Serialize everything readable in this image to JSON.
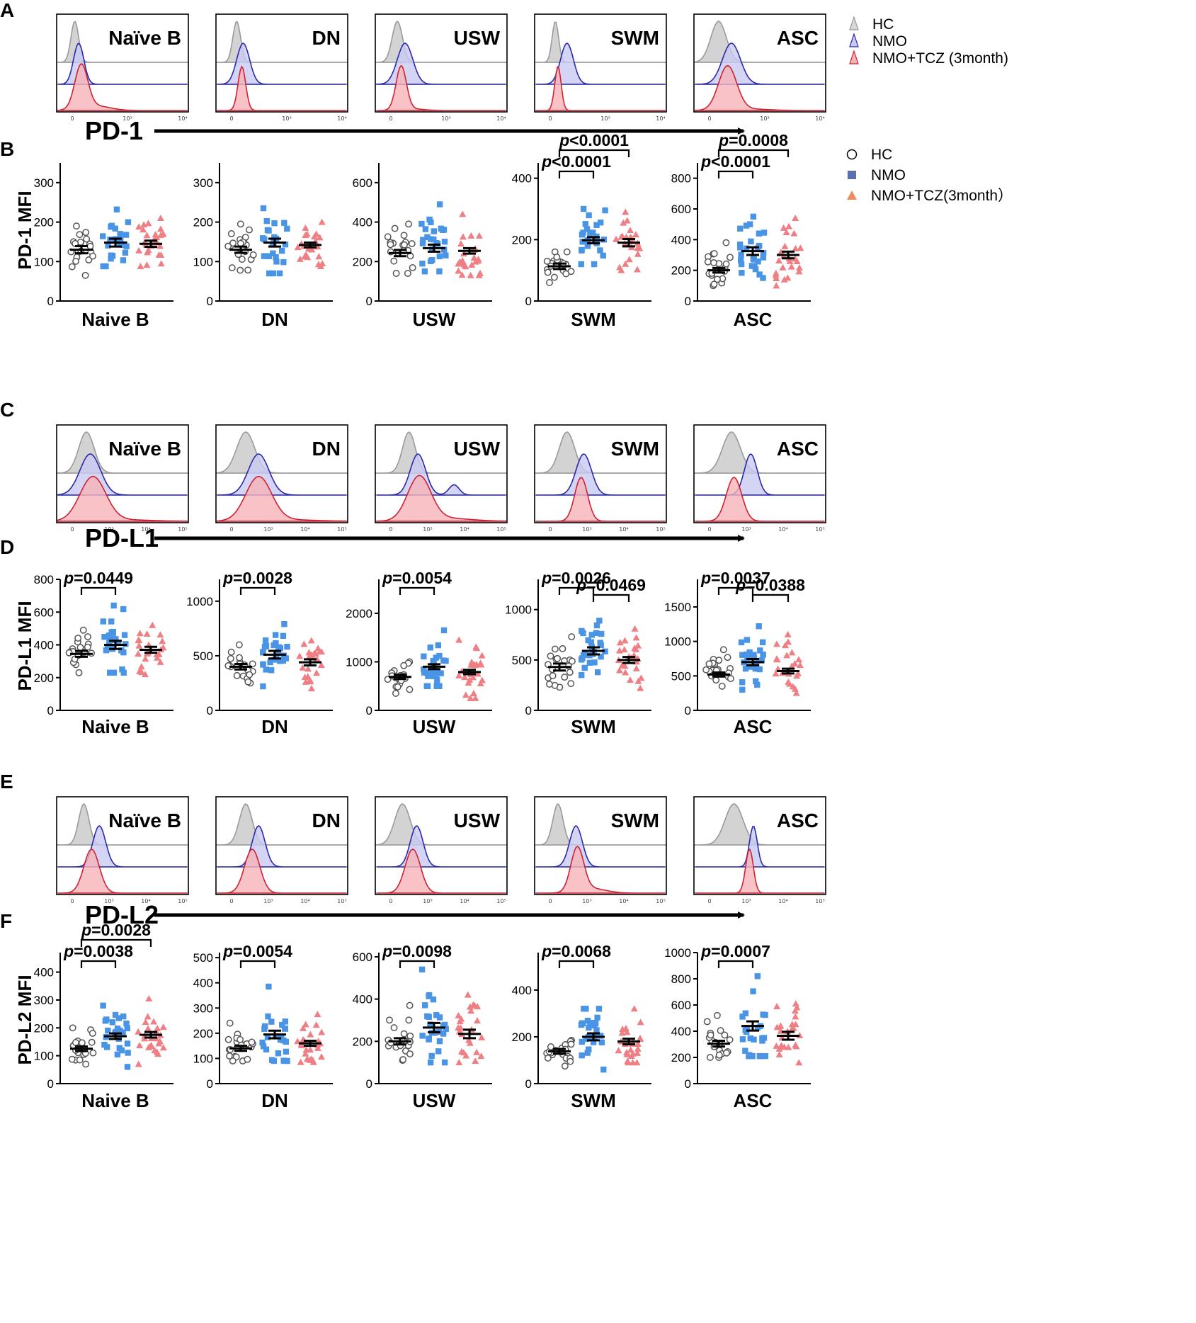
{
  "colors": {
    "hc": "#555555",
    "nmo": "#4a94e6",
    "tcz": "#ee7f84",
    "hc_fill": "#c8c8c8",
    "nmo_fill": "#c9c9f2",
    "nmo_line": "#2a2aa8",
    "tcz_fill": "#f6b3b8",
    "tcz_line": "#cf2232"
  },
  "legend_top": {
    "entries": [
      "HC",
      "NMO",
      "NMO+TCZ (3month)"
    ]
  },
  "legend_scatter": {
    "entries": [
      "HC",
      "NMO",
      "NMO+TCZ(3month）"
    ]
  },
  "hist_rows": [
    {
      "letter": "A",
      "marker": "PD-1",
      "panels": [
        {
          "title": "Naïve B",
          "hc": [
            0.13,
            0.03,
            0.0
          ],
          "nmo": [
            0.16,
            0.04,
            0.0
          ],
          "tcz": [
            0.18,
            0.05,
            0.0
          ],
          "tcz_tail": 0.3
        },
        {
          "title": "DN",
          "hc": [
            0.15,
            0.03,
            0.0
          ],
          "nmo": [
            0.2,
            0.05,
            0.0
          ],
          "tcz": [
            0.19,
            0.03,
            0.0
          ],
          "tcz_tail": 0.0
        },
        {
          "title": "USW",
          "hc": [
            0.16,
            0.04,
            0.0
          ],
          "nmo": [
            0.22,
            0.06,
            0.0
          ],
          "tcz": [
            0.19,
            0.04,
            0.0
          ],
          "tcz_tail": 0.1
        },
        {
          "title": "SWM",
          "hc": [
            0.15,
            0.025,
            0.0
          ],
          "nmo": [
            0.24,
            0.05,
            0.0
          ],
          "tcz": [
            0.17,
            0.025,
            0.0
          ],
          "tcz_tail": 0.0
        },
        {
          "title": "ASC",
          "hc": [
            0.18,
            0.06,
            0.0
          ],
          "nmo": [
            0.28,
            0.07,
            0.0
          ],
          "tcz": [
            0.25,
            0.07,
            0.0
          ],
          "tcz_tail": 0.1
        }
      ],
      "ticks": [
        "0",
        "10³",
        "10⁴"
      ]
    },
    {
      "letter": "C",
      "marker": "PD-L1",
      "panels": [
        {
          "title": "Naïve B",
          "hc": [
            0.22,
            0.06,
            0.0
          ],
          "nmo": [
            0.25,
            0.08,
            0.0
          ],
          "tcz": [
            0.27,
            0.1,
            0.0
          ],
          "tcz_tail": 0.1
        },
        {
          "title": "DN",
          "hc": [
            0.22,
            0.07,
            0.0
          ],
          "nmo": [
            0.32,
            0.08,
            0.0
          ],
          "tcz": [
            0.32,
            0.1,
            0.0
          ],
          "tcz_tail": 0.1
        },
        {
          "title": "USW",
          "hc": [
            0.25,
            0.05,
            0.0
          ],
          "nmo": [
            0.32,
            0.06,
            0.6
          ],
          "tcz": [
            0.33,
            0.09,
            0.0
          ],
          "tcz_tail": 0.2
        },
        {
          "title": "SWM",
          "hc": [
            0.24,
            0.06,
            0.0
          ],
          "nmo": [
            0.37,
            0.06,
            0.0
          ],
          "tcz": [
            0.35,
            0.05,
            0.0
          ],
          "tcz_tail": 0.0
        },
        {
          "title": "ASC",
          "hc": [
            0.28,
            0.07,
            0.0
          ],
          "nmo": [
            0.43,
            0.05,
            0.0
          ],
          "tcz": [
            0.3,
            0.06,
            0.0
          ],
          "tcz_tail": 0.0
        }
      ],
      "ticks": [
        "0",
        "10³",
        "10⁴",
        "10⁵"
      ]
    },
    {
      "letter": "E",
      "marker": "PD-L2",
      "panels": [
        {
          "title": "Naïve B",
          "hc": [
            0.2,
            0.04,
            0.0
          ],
          "nmo": [
            0.32,
            0.05,
            0.0
          ],
          "tcz": [
            0.26,
            0.06,
            0.0
          ],
          "tcz_tail": 0.0
        },
        {
          "title": "DN",
          "hc": [
            0.22,
            0.05,
            0.0
          ],
          "nmo": [
            0.32,
            0.05,
            0.0
          ],
          "tcz": [
            0.27,
            0.06,
            0.0
          ],
          "tcz_tail": 0.0
        },
        {
          "title": "USW",
          "hc": [
            0.2,
            0.06,
            0.0
          ],
          "nmo": [
            0.31,
            0.05,
            0.0
          ],
          "tcz": [
            0.28,
            0.06,
            0.0
          ],
          "tcz_tail": 0.0
        },
        {
          "title": "SWM",
          "hc": [
            0.17,
            0.04,
            0.0
          ],
          "nmo": [
            0.31,
            0.05,
            0.0
          ],
          "tcz": [
            0.32,
            0.05,
            0.0
          ],
          "tcz_tail": 0.3
        },
        {
          "title": "ASC",
          "hc": [
            0.3,
            0.07,
            0.0
          ],
          "nmo": [
            0.45,
            0.03,
            0.0
          ],
          "tcz": [
            0.42,
            0.03,
            0.0
          ],
          "tcz_tail": 0.0
        }
      ],
      "ticks": [
        "0",
        "10³",
        "10⁴",
        "10⁵"
      ]
    }
  ],
  "chart_data": [
    {
      "letter": "B",
      "type": "scatter",
      "ylabel": "PD-1 MFI",
      "panels": [
        {
          "category": "Naive B",
          "ylim": [
            0,
            350
          ],
          "yticks": [
            0,
            100,
            200,
            300
          ],
          "means": [
            130,
            148,
            145
          ],
          "sems": [
            9,
            10,
            8
          ],
          "ranges": [
            [
              65,
              190
            ],
            [
              88,
              232
            ],
            [
              88,
              210
            ]
          ],
          "counts": [
            20,
            26,
            25
          ],
          "brackets": []
        },
        {
          "category": "DN",
          "ylim": [
            0,
            350
          ],
          "yticks": [
            0,
            100,
            200,
            300
          ],
          "means": [
            130,
            148,
            142
          ],
          "sems": [
            8,
            10,
            6
          ],
          "ranges": [
            [
              78,
              195
            ],
            [
              70,
              235
            ],
            [
              88,
              200
            ]
          ],
          "counts": [
            20,
            26,
            25
          ],
          "brackets": []
        },
        {
          "category": "USW",
          "ylim": [
            0,
            700
          ],
          "yticks": [
            0,
            200,
            400,
            600
          ],
          "means": [
            243,
            268,
            254
          ],
          "sems": [
            16,
            18,
            14
          ],
          "ranges": [
            [
              140,
              390
            ],
            [
              150,
              490
            ],
            [
              130,
              440
            ]
          ],
          "counts": [
            20,
            26,
            25
          ],
          "brackets": []
        },
        {
          "category": "SWM",
          "ylim": [
            0,
            450
          ],
          "yticks": [
            0,
            200,
            400
          ],
          "means": [
            113,
            198,
            190
          ],
          "sems": [
            9,
            10,
            12
          ],
          "ranges": [
            [
              60,
              160
            ],
            [
              120,
              300
            ],
            [
              100,
              290
            ]
          ],
          "counts": [
            20,
            26,
            25
          ],
          "brackets": [
            {
              "from": 0,
              "to": 1,
              "text": "p<0.0001"
            },
            {
              "from": 0,
              "to": 2,
              "text": "p<0.0001"
            }
          ]
        },
        {
          "category": "ASC",
          "ylim": [
            0,
            900
          ],
          "yticks": [
            0,
            200,
            400,
            600,
            800
          ],
          "means": [
            200,
            325,
            300
          ],
          "sems": [
            15,
            25,
            22
          ],
          "ranges": [
            [
              100,
              380
            ],
            [
              150,
              550
            ],
            [
              100,
              540
            ]
          ],
          "counts": [
            20,
            26,
            25
          ],
          "brackets": [
            {
              "from": 0,
              "to": 1,
              "text": "p<0.0001"
            },
            {
              "from": 0,
              "to": 2,
              "text": "p=0.0008"
            }
          ]
        }
      ]
    },
    {
      "letter": "D",
      "type": "scatter",
      "ylabel": "PD-L1 MFI",
      "panels": [
        {
          "category": "Naive B",
          "ylim": [
            0,
            800
          ],
          "yticks": [
            0,
            200,
            400,
            600,
            800
          ],
          "means": [
            345,
            400,
            370
          ],
          "sems": [
            18,
            25,
            18
          ],
          "ranges": [
            [
              230,
              490
            ],
            [
              230,
              640
            ],
            [
              220,
              520
            ]
          ],
          "counts": [
            20,
            26,
            25
          ],
          "brackets": [
            {
              "from": 0,
              "to": 1,
              "text": "p=0.0449"
            }
          ]
        },
        {
          "category": "DN",
          "ylim": [
            0,
            1200
          ],
          "yticks": [
            0,
            500,
            1000
          ],
          "means": [
            400,
            510,
            440
          ],
          "sems": [
            25,
            35,
            28
          ],
          "ranges": [
            [
              250,
              600
            ],
            [
              220,
              790
            ],
            [
              200,
              640
            ]
          ],
          "counts": [
            20,
            26,
            25
          ],
          "brackets": [
            {
              "from": 0,
              "to": 1,
              "text": "p=0.0028"
            }
          ]
        },
        {
          "category": "USW",
          "ylim": [
            0,
            2700
          ],
          "yticks": [
            0,
            1000,
            2000
          ],
          "means": [
            690,
            900,
            790
          ],
          "sems": [
            45,
            50,
            45
          ],
          "ranges": [
            [
              350,
              1000
            ],
            [
              500,
              1650
            ],
            [
              250,
              1450
            ]
          ],
          "counts": [
            20,
            26,
            25
          ],
          "brackets": [
            {
              "from": 0,
              "to": 1,
              "text": "p=0.0054"
            }
          ]
        },
        {
          "category": "SWM",
          "ylim": [
            0,
            1300
          ],
          "yticks": [
            0,
            500,
            1000
          ],
          "means": [
            430,
            590,
            500
          ],
          "sems": [
            35,
            35,
            30
          ],
          "ranges": [
            [
              230,
              730
            ],
            [
              350,
              890
            ],
            [
              220,
              810
            ]
          ],
          "counts": [
            20,
            26,
            25
          ],
          "brackets": [
            {
              "from": 0,
              "to": 1,
              "text": "p=0.0026"
            },
            {
              "from": 1,
              "to": 2,
              "text": "p=0.0469"
            }
          ]
        },
        {
          "category": "ASC",
          "ylim": [
            0,
            1900
          ],
          "yticks": [
            0,
            500,
            1000,
            1500
          ],
          "means": [
            520,
            700,
            570
          ],
          "sems": [
            30,
            45,
            35
          ],
          "ranges": [
            [
              350,
              880
            ],
            [
              300,
              1220
            ],
            [
              250,
              1100
            ]
          ],
          "counts": [
            20,
            26,
            25
          ],
          "brackets": [
            {
              "from": 0,
              "to": 1,
              "text": "p=0.0037"
            },
            {
              "from": 1,
              "to": 2,
              "text": "p=0.0388"
            }
          ]
        }
      ]
    },
    {
      "letter": "F",
      "type": "scatter",
      "ylabel": "PD-L2 MFI",
      "panels": [
        {
          "category": "Naive B",
          "ylim": [
            0,
            470
          ],
          "yticks": [
            0,
            100,
            200,
            300,
            400
          ],
          "means": [
            125,
            170,
            175
          ],
          "sems": [
            8,
            10,
            10
          ],
          "ranges": [
            [
              70,
              200
            ],
            [
              60,
              280
            ],
            [
              70,
              305
            ]
          ],
          "counts": [
            20,
            26,
            25
          ],
          "brackets": [
            {
              "from": 0,
              "to": 1,
              "text": "p=0.0038"
            },
            {
              "from": 0,
              "to": 2,
              "text": "p=0.0028"
            }
          ]
        },
        {
          "category": "DN",
          "ylim": [
            0,
            520
          ],
          "yticks": [
            0,
            100,
            200,
            300,
            400,
            500
          ],
          "means": [
            140,
            195,
            160
          ],
          "sems": [
            10,
            15,
            10
          ],
          "ranges": [
            [
              90,
              240
            ],
            [
              90,
              385
            ],
            [
              85,
              275
            ]
          ],
          "counts": [
            20,
            26,
            25
          ],
          "brackets": [
            {
              "from": 0,
              "to": 1,
              "text": "p=0.0054"
            }
          ]
        },
        {
          "category": "USW",
          "ylim": [
            0,
            620
          ],
          "yticks": [
            0,
            200,
            400,
            600
          ],
          "means": [
            200,
            265,
            235
          ],
          "sems": [
            15,
            22,
            20
          ],
          "ranges": [
            [
              110,
              370
            ],
            [
              100,
              540
            ],
            [
              100,
              420
            ]
          ],
          "counts": [
            20,
            26,
            25
          ],
          "brackets": [
            {
              "from": 0,
              "to": 1,
              "text": "p=0.0098"
            }
          ]
        },
        {
          "category": "SWM",
          "ylim": [
            0,
            560
          ],
          "yticks": [
            0,
            200,
            400
          ],
          "means": [
            138,
            200,
            180
          ],
          "sems": [
            10,
            15,
            12
          ],
          "ranges": [
            [
              75,
              185
            ],
            [
              60,
              320
            ],
            [
              90,
              320
            ]
          ],
          "counts": [
            20,
            26,
            25
          ],
          "brackets": [
            {
              "from": 0,
              "to": 1,
              "text": "p=0.0068"
            }
          ]
        },
        {
          "category": "ASC",
          "ylim": [
            0,
            1000
          ],
          "yticks": [
            0,
            200,
            400,
            600,
            800,
            1000
          ],
          "means": [
            305,
            440,
            365
          ],
          "sems": [
            22,
            35,
            30
          ],
          "ranges": [
            [
              200,
              520
            ],
            [
              210,
              820
            ],
            [
              160,
              610
            ]
          ],
          "counts": [
            20,
            26,
            25
          ],
          "brackets": [
            {
              "from": 0,
              "to": 1,
              "text": "p=0.0007"
            }
          ]
        }
      ]
    }
  ]
}
